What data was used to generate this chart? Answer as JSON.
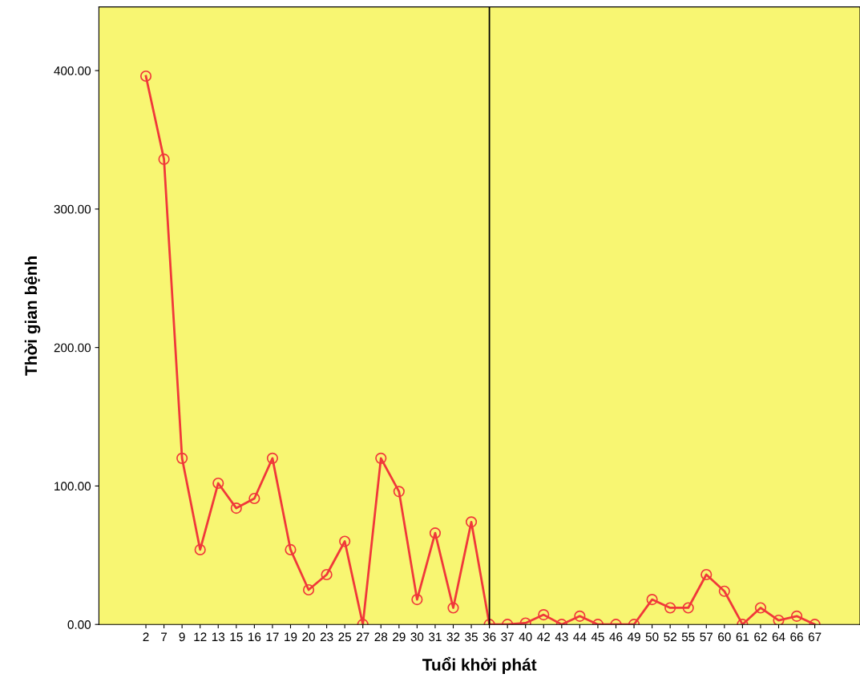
{
  "chart_data": {
    "type": "line",
    "xlabel": "Tuổi khởi phát",
    "ylabel": "Thời gian bệnh",
    "categories": [
      "2",
      "7",
      "9",
      "12",
      "13",
      "15",
      "16",
      "17",
      "19",
      "20",
      "23",
      "25",
      "27",
      "28",
      "29",
      "30",
      "31",
      "32",
      "35",
      "36",
      "37",
      "40",
      "42",
      "43",
      "44",
      "45",
      "46",
      "49",
      "50",
      "52",
      "55",
      "57",
      "60",
      "61",
      "62",
      "64",
      "66",
      "67"
    ],
    "series": [
      {
        "color": "#f0383a",
        "values": [
          396,
          336,
          120,
          54,
          102,
          84,
          91,
          120,
          54,
          25,
          36,
          60,
          0,
          120,
          96,
          18,
          66,
          12,
          74,
          0,
          0,
          1,
          7,
          0,
          6,
          0,
          0,
          0,
          18,
          12,
          12,
          36,
          24,
          0,
          12,
          3,
          6,
          0
        ]
      }
    ],
    "ylim": [
      0,
      446
    ],
    "yticks": [
      {
        "value": 0,
        "label": "0.00"
      },
      {
        "value": 100,
        "label": "100.00"
      },
      {
        "value": 200,
        "label": "200.00"
      },
      {
        "value": 300,
        "label": "300.00"
      },
      {
        "value": 400,
        "label": "400.00"
      }
    ],
    "ref_lines": [
      {
        "axis": "x",
        "value": "36",
        "color": "#000000"
      }
    ],
    "marker": "circle",
    "grid": false
  }
}
